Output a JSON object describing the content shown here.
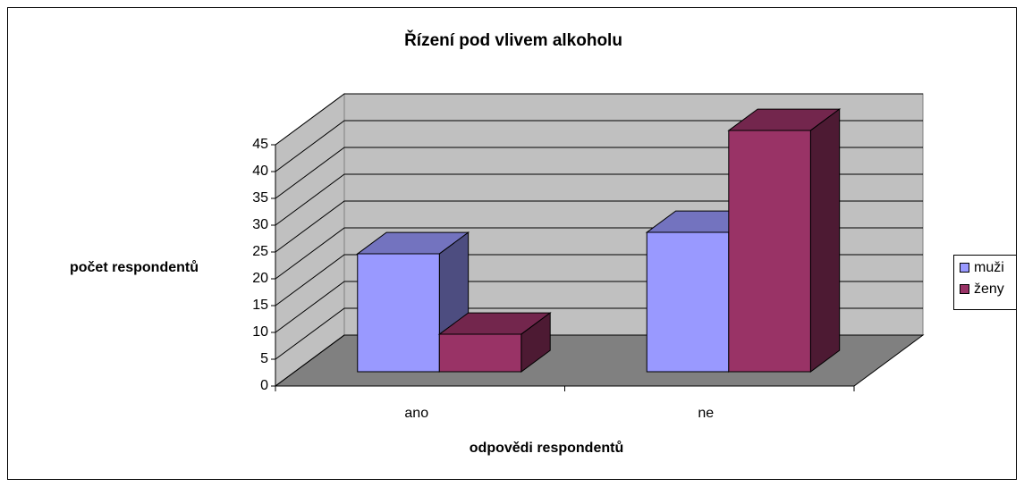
{
  "chart_data": {
    "type": "bar3d",
    "title": "Řízení pod vlivem alkoholu",
    "x_label": "odpovědi respondentů",
    "y_label": "počet respondentů",
    "categories": [
      "ano",
      "ne"
    ],
    "series": [
      {
        "name": "muži",
        "color": "#9999ff",
        "values": [
          22,
          26
        ]
      },
      {
        "name": "ženy",
        "color": "#993366",
        "values": [
          7,
          45
        ]
      }
    ],
    "ylim": [
      0,
      45
    ],
    "yticks": [
      0,
      5,
      10,
      15,
      20,
      25,
      30,
      35,
      40,
      45
    ],
    "grid": true,
    "legend": "right"
  }
}
